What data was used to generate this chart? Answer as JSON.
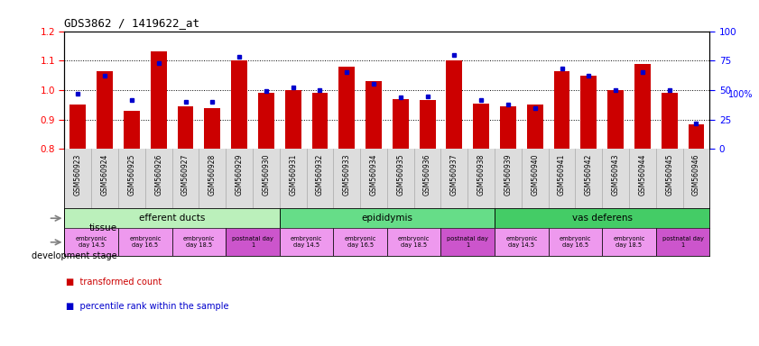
{
  "title": "GDS3862 / 1419622_at",
  "samples": [
    "GSM560923",
    "GSM560924",
    "GSM560925",
    "GSM560926",
    "GSM560927",
    "GSM560928",
    "GSM560929",
    "GSM560930",
    "GSM560931",
    "GSM560932",
    "GSM560933",
    "GSM560934",
    "GSM560935",
    "GSM560936",
    "GSM560937",
    "GSM560938",
    "GSM560939",
    "GSM560940",
    "GSM560941",
    "GSM560942",
    "GSM560943",
    "GSM560944",
    "GSM560945",
    "GSM560946"
  ],
  "red_values": [
    0.95,
    1.065,
    0.93,
    1.13,
    0.945,
    0.94,
    1.1,
    0.99,
    1.0,
    0.99,
    1.08,
    1.03,
    0.97,
    0.965,
    1.1,
    0.955,
    0.945,
    0.95,
    1.065,
    1.05,
    1.0,
    1.09,
    0.99,
    0.885
  ],
  "blue_values": [
    47,
    62,
    42,
    73,
    40,
    40,
    78,
    49,
    52,
    50,
    65,
    55,
    44,
    45,
    80,
    42,
    38,
    35,
    68,
    62,
    50,
    65,
    50,
    22
  ],
  "ylim_left": [
    0.8,
    1.2
  ],
  "ylim_right": [
    0,
    100
  ],
  "yticks_left": [
    0.8,
    0.9,
    1.0,
    1.1,
    1.2
  ],
  "yticks_right": [
    0,
    25,
    50,
    75,
    100
  ],
  "bar_color": "#cc0000",
  "dot_color": "#0000cc",
  "tissue_groups": [
    {
      "label": "efferent ducts",
      "start": 0,
      "end": 7,
      "color": "#bbf0bb"
    },
    {
      "label": "epididymis",
      "start": 8,
      "end": 15,
      "color": "#66dd88"
    },
    {
      "label": "vas deferens",
      "start": 16,
      "end": 23,
      "color": "#44cc66"
    }
  ],
  "dev_stages": [
    {
      "label": "embryonic\nday 14.5",
      "start": 0,
      "end": 1,
      "color": "#ee99ee"
    },
    {
      "label": "embryonic\nday 16.5",
      "start": 2,
      "end": 3,
      "color": "#ee99ee"
    },
    {
      "label": "embryonic\nday 18.5",
      "start": 4,
      "end": 5,
      "color": "#ee99ee"
    },
    {
      "label": "postnatal day\n1",
      "start": 6,
      "end": 7,
      "color": "#cc55cc"
    },
    {
      "label": "embryonic\nday 14.5",
      "start": 8,
      "end": 9,
      "color": "#ee99ee"
    },
    {
      "label": "embryonic\nday 16.5",
      "start": 10,
      "end": 11,
      "color": "#ee99ee"
    },
    {
      "label": "embryonic\nday 18.5",
      "start": 12,
      "end": 13,
      "color": "#ee99ee"
    },
    {
      "label": "postnatal day\n1",
      "start": 14,
      "end": 15,
      "color": "#cc55cc"
    },
    {
      "label": "embryonic\nday 14.5",
      "start": 16,
      "end": 17,
      "color": "#ee99ee"
    },
    {
      "label": "embryonic\nday 16.5",
      "start": 18,
      "end": 19,
      "color": "#ee99ee"
    },
    {
      "label": "embryonic\nday 18.5",
      "start": 20,
      "end": 21,
      "color": "#ee99ee"
    },
    {
      "label": "postnatal day\n1",
      "start": 22,
      "end": 23,
      "color": "#cc55cc"
    }
  ],
  "legend_red": "transformed count",
  "legend_blue": "percentile rank within the sample",
  "tissue_label": "tissue",
  "dev_label": "development stage",
  "background_color": "#ffffff",
  "xtick_bg": "#dddddd"
}
